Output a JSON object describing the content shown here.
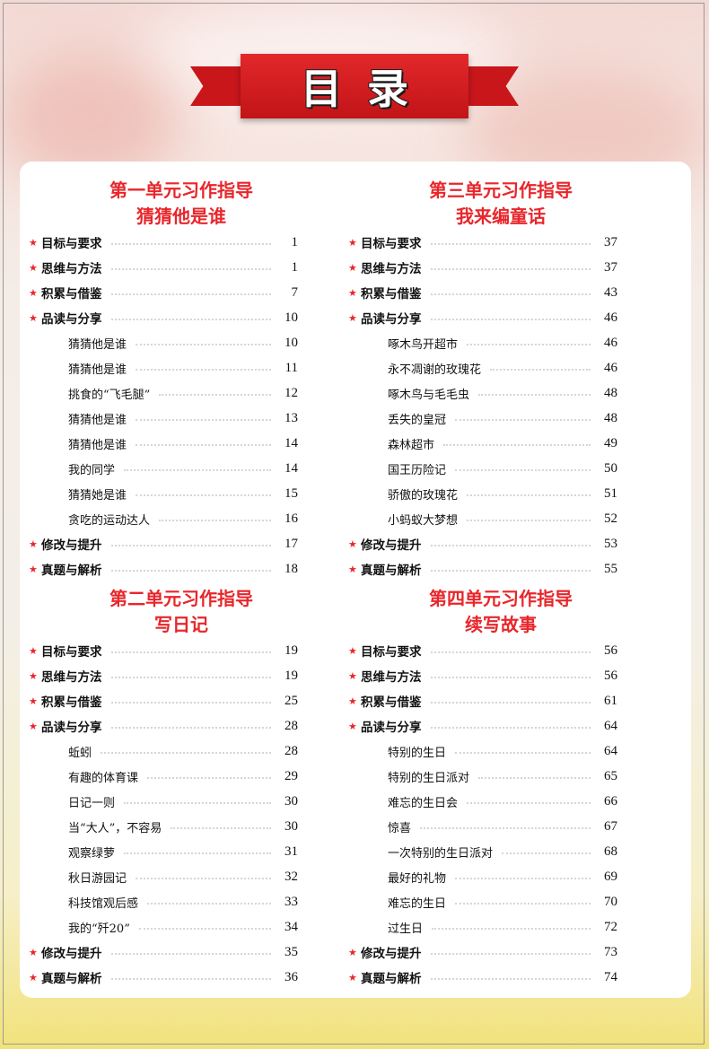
{
  "title": "目录",
  "colors": {
    "accent": "#e8262b",
    "ribbon": "#c8161b"
  },
  "columns": [
    {
      "sections": [
        {
          "unit": "第一单元习作指导",
          "topic": "猜猜他是谁",
          "items": [
            {
              "type": "main",
              "label": "目标与要求",
              "page": "1"
            },
            {
              "type": "main",
              "label": "思维与方法",
              "page": "1"
            },
            {
              "type": "main",
              "label": "积累与借鉴",
              "page": "7"
            },
            {
              "type": "main",
              "label": "品读与分享",
              "page": "10"
            },
            {
              "type": "sub",
              "label": "猜猜他是谁",
              "page": "10"
            },
            {
              "type": "sub",
              "label": "猜猜他是谁",
              "page": "11"
            },
            {
              "type": "sub",
              "label": "挑食的“飞毛腿”",
              "page": "12"
            },
            {
              "type": "sub",
              "label": "猜猜他是谁",
              "page": "13"
            },
            {
              "type": "sub",
              "label": "猜猜他是谁",
              "page": "14"
            },
            {
              "type": "sub",
              "label": "我的同学",
              "page": "14"
            },
            {
              "type": "sub",
              "label": "猜猜她是谁",
              "page": "15"
            },
            {
              "type": "sub",
              "label": "贪吃的运动达人",
              "page": "16"
            },
            {
              "type": "main",
              "label": "修改与提升",
              "page": "17"
            },
            {
              "type": "main",
              "label": "真题与解析",
              "page": "18"
            }
          ]
        },
        {
          "unit": "第二单元习作指导",
          "topic": "写日记",
          "items": [
            {
              "type": "main",
              "label": "目标与要求",
              "page": "19"
            },
            {
              "type": "main",
              "label": "思维与方法",
              "page": "19"
            },
            {
              "type": "main",
              "label": "积累与借鉴",
              "page": "25"
            },
            {
              "type": "main",
              "label": "品读与分享",
              "page": "28"
            },
            {
              "type": "sub",
              "label": "蚯蚓",
              "page": "28"
            },
            {
              "type": "sub",
              "label": "有趣的体育课",
              "page": "29"
            },
            {
              "type": "sub",
              "label": "日记一则",
              "page": "30"
            },
            {
              "type": "sub",
              "label": "当“大人”，不容易",
              "page": "30"
            },
            {
              "type": "sub",
              "label": "观察绿萝",
              "page": "31"
            },
            {
              "type": "sub",
              "label": "秋日游园记",
              "page": "32"
            },
            {
              "type": "sub",
              "label": "科技馆观后感",
              "page": "33"
            },
            {
              "type": "sub",
              "label": "我的“歼20”",
              "page": "34"
            },
            {
              "type": "main",
              "label": "修改与提升",
              "page": "35"
            },
            {
              "type": "main",
              "label": "真题与解析",
              "page": "36"
            }
          ]
        }
      ]
    },
    {
      "sections": [
        {
          "unit": "第三单元习作指导",
          "topic": "我来编童话",
          "items": [
            {
              "type": "main",
              "label": "目标与要求",
              "page": "37"
            },
            {
              "type": "main",
              "label": "思维与方法",
              "page": "37"
            },
            {
              "type": "main",
              "label": "积累与借鉴",
              "page": "43"
            },
            {
              "type": "main",
              "label": "品读与分享",
              "page": "46"
            },
            {
              "type": "sub",
              "label": "啄木鸟开超市",
              "page": "46"
            },
            {
              "type": "sub",
              "label": "永不凋谢的玫瑰花",
              "page": "46"
            },
            {
              "type": "sub",
              "label": "啄木鸟与毛毛虫",
              "page": "48"
            },
            {
              "type": "sub",
              "label": "丢失的皇冠",
              "page": "48"
            },
            {
              "type": "sub",
              "label": "森林超市",
              "page": "49"
            },
            {
              "type": "sub",
              "label": "国王历险记",
              "page": "50"
            },
            {
              "type": "sub",
              "label": "骄傲的玫瑰花",
              "page": "51"
            },
            {
              "type": "sub",
              "label": "小蚂蚁大梦想",
              "page": "52"
            },
            {
              "type": "main",
              "label": "修改与提升",
              "page": "53"
            },
            {
              "type": "main",
              "label": "真题与解析",
              "page": "55"
            }
          ]
        },
        {
          "unit": "第四单元习作指导",
          "topic": "续写故事",
          "items": [
            {
              "type": "main",
              "label": "目标与要求",
              "page": "56"
            },
            {
              "type": "main",
              "label": "思维与方法",
              "page": "56"
            },
            {
              "type": "main",
              "label": "积累与借鉴",
              "page": "61"
            },
            {
              "type": "main",
              "label": "品读与分享",
              "page": "64"
            },
            {
              "type": "sub",
              "label": "特别的生日",
              "page": "64"
            },
            {
              "type": "sub",
              "label": "特别的生日派对",
              "page": "65"
            },
            {
              "type": "sub",
              "label": "难忘的生日会",
              "page": "66"
            },
            {
              "type": "sub",
              "label": "惊喜",
              "page": "67"
            },
            {
              "type": "sub",
              "label": "一次特别的生日派对",
              "page": "68"
            },
            {
              "type": "sub",
              "label": "最好的礼物",
              "page": "69"
            },
            {
              "type": "sub",
              "label": "难忘的生日",
              "page": "70"
            },
            {
              "type": "sub",
              "label": "过生日",
              "page": "72"
            },
            {
              "type": "main",
              "label": "修改与提升",
              "page": "73"
            },
            {
              "type": "main",
              "label": "真题与解析",
              "page": "74"
            }
          ]
        }
      ]
    }
  ]
}
